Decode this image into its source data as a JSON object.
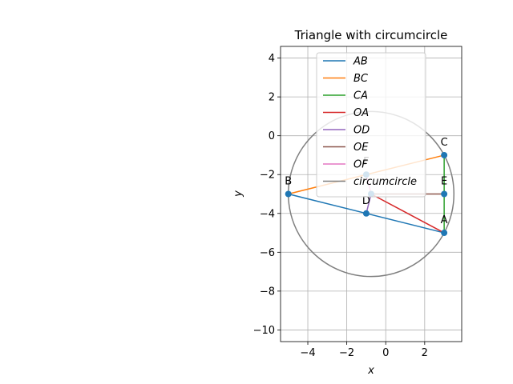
{
  "chart_data": {
    "type": "line",
    "title": "Triangle with circumcircle",
    "xlabel": "x",
    "ylabel": "y",
    "xlim": [
      -5.4,
      3.9
    ],
    "ylim": [
      -10.6,
      4.6
    ],
    "aspect": "equal",
    "grid": true,
    "legend_loc": "upper-center",
    "x_ticks": [
      -4,
      -2,
      0,
      2
    ],
    "x_tick_labels": [
      "−4",
      "−2",
      "0",
      "2"
    ],
    "y_ticks": [
      4,
      2,
      0,
      -2,
      -4,
      -6,
      -8,
      -10
    ],
    "y_tick_labels": [
      "4",
      "2",
      "0",
      "−2",
      "−4",
      "−6",
      "−8",
      "−10"
    ],
    "points": [
      {
        "label": "A",
        "x": 3,
        "y": -5
      },
      {
        "label": "B",
        "x": -5,
        "y": -3
      },
      {
        "label": "C",
        "x": 3,
        "y": -1
      },
      {
        "label": "D",
        "x": -1,
        "y": -4
      },
      {
        "label": "E",
        "x": 3,
        "y": -3
      },
      {
        "label": "F",
        "x": -1,
        "y": -2
      },
      {
        "label": "",
        "x": -0.75,
        "y": -3
      }
    ],
    "series": [
      {
        "name": "AB",
        "color": "#1f77b4",
        "x": [
          3,
          -5
        ],
        "y": [
          -5,
          -3
        ]
      },
      {
        "name": "BC",
        "color": "#ff7f0e",
        "x": [
          -5,
          3
        ],
        "y": [
          -3,
          -1
        ]
      },
      {
        "name": "CA",
        "color": "#2ca02c",
        "x": [
          3,
          3
        ],
        "y": [
          -1,
          -5
        ]
      },
      {
        "name": "OA",
        "color": "#d62728",
        "x": [
          -0.75,
          3
        ],
        "y": [
          -3,
          -5
        ]
      },
      {
        "name": "OD",
        "color": "#9467bd",
        "x": [
          -0.75,
          -1
        ],
        "y": [
          -3,
          -4
        ]
      },
      {
        "name": "OE",
        "color": "#8c564b",
        "x": [
          -0.75,
          3
        ],
        "y": [
          -3,
          -3
        ]
      },
      {
        "name": "OF",
        "color": "#e377c2",
        "x": [
          -0.75,
          -1
        ],
        "y": [
          -3,
          -2
        ]
      },
      {
        "name": "circumcircle",
        "color": "#7f7f7f",
        "center": [
          -0.75,
          -3
        ],
        "radius": 4.25
      }
    ]
  }
}
